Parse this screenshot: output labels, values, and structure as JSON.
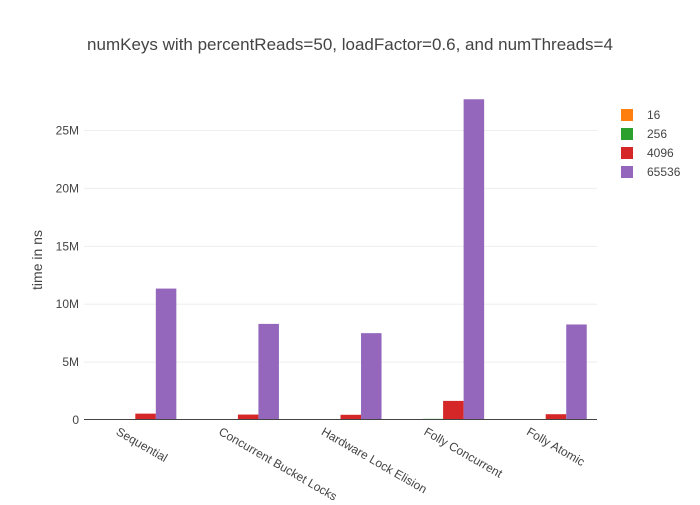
{
  "chart_data": {
    "type": "bar",
    "title": "numKeys with percentReads=50, loadFactor=0.6, and numThreads=4",
    "xlabel": "",
    "ylabel": "time in ns",
    "categories": [
      "Sequential",
      "Concurrent Bucket Locks",
      "Hardware Lock Elision",
      "Folly Concurrent",
      "Folly Atomic"
    ],
    "ylim": [
      0,
      28500000
    ],
    "yticks": [
      0,
      5000000,
      10000000,
      15000000,
      20000000,
      25000000
    ],
    "ytick_labels": [
      "0",
      "5M",
      "10M",
      "15M",
      "20M",
      "25M"
    ],
    "grid": true,
    "legend_position": "top-right",
    "series": [
      {
        "name": "16",
        "color": "#ff7f0e",
        "values": [
          5000,
          4000,
          4000,
          15000,
          4000
        ]
      },
      {
        "name": "256",
        "color": "#2ca02c",
        "values": [
          30000,
          30000,
          30000,
          100000,
          30000
        ]
      },
      {
        "name": "4096",
        "color": "#d62728",
        "values": [
          550000,
          470000,
          450000,
          1650000,
          500000
        ]
      },
      {
        "name": "65536",
        "color": "#9467bd",
        "values": [
          11350000,
          8300000,
          7500000,
          27700000,
          8250000
        ]
      }
    ]
  }
}
